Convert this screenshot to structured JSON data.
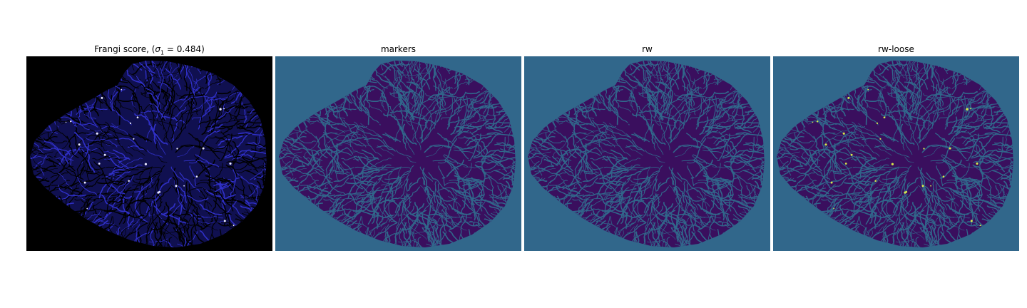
{
  "panels": [
    {
      "title_prefix": "Frangi score, (",
      "title_symbol": "σ",
      "title_subscript": "1",
      "title_suffix": " = 0.484)",
      "background": "#000000",
      "fill": "#101050",
      "vein": "#000000",
      "vein2": "#3030c8",
      "speck": "#e8e8ff"
    },
    {
      "title": "markers",
      "background": "#31678b",
      "fill": "#3a0f5e",
      "vein": "#31678b",
      "vein2": "#31678b",
      "speck": "#3a0f5e"
    },
    {
      "title": "rw",
      "background": "#31678b",
      "fill": "#3a0f5e",
      "vein": "#31678b",
      "vein2": "#31678b",
      "speck": "#3a0f5e"
    },
    {
      "title": "rw-loose",
      "background": "#31678b",
      "fill": "#3a0f5e",
      "vein": "#31678b",
      "vein2": "#31678b",
      "speck": "#d8e84a"
    }
  ]
}
